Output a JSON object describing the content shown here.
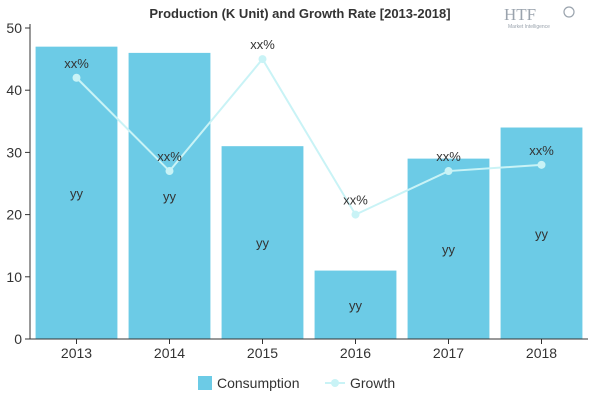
{
  "chart_data": {
    "type": "bar",
    "title": "Production (K Unit) and Growth Rate [2013-2018]",
    "categories": [
      "2013",
      "2014",
      "2015",
      "2016",
      "2017",
      "2018"
    ],
    "ylim": [
      0,
      50
    ],
    "yticks": [
      0,
      10,
      20,
      30,
      40,
      50
    ],
    "grid": false,
    "legend_position": "bottom",
    "series": [
      {
        "name": "Consumption",
        "type": "bar",
        "color": "#6ccbe6",
        "values": [
          47,
          46,
          31,
          11,
          29,
          34
        ],
        "labels": [
          "yy",
          "yy",
          "yy",
          "yy",
          "yy",
          "yy"
        ]
      },
      {
        "name": "Growth",
        "type": "line",
        "color": "#c9f3f6",
        "values": [
          42,
          27,
          45,
          20,
          27,
          28
        ],
        "labels": [
          "xx%",
          "xx%",
          "xx%",
          "xx%",
          "xx%",
          "xx%"
        ]
      }
    ]
  },
  "logo": {
    "main": "HTF",
    "sub": "Market Intelligence"
  }
}
